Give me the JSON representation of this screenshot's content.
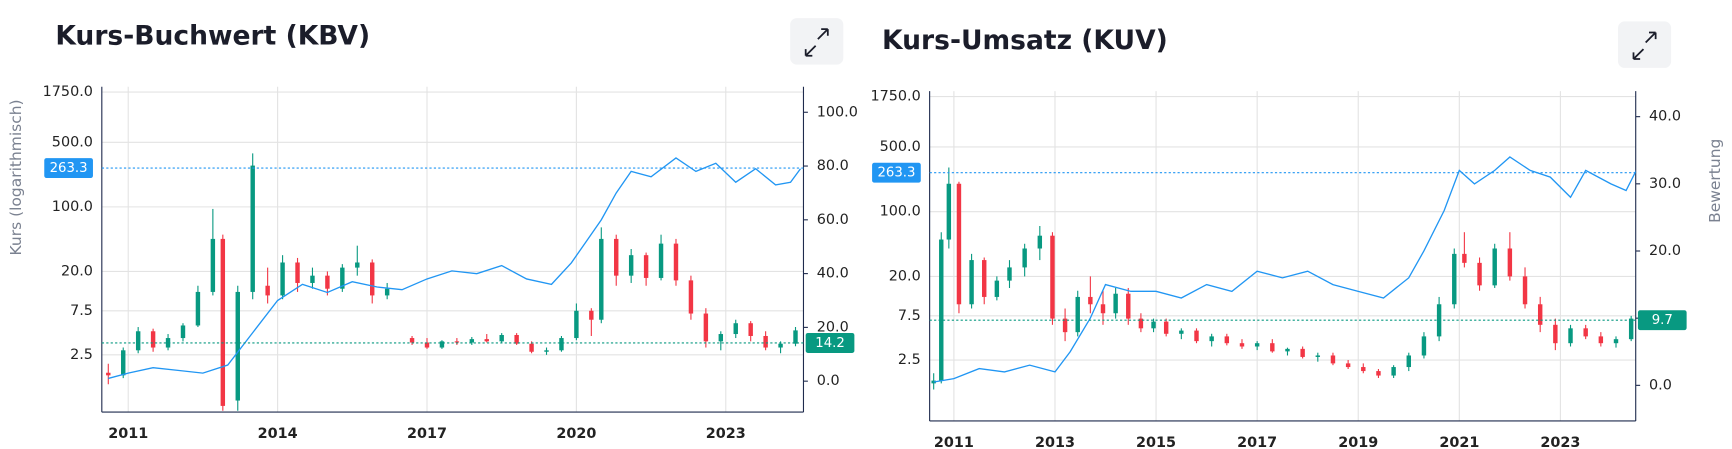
{
  "chart_data": [
    {
      "type": "candlestick",
      "title": "Kurs-Buchwert (KBV)",
      "y_label": "Kurs (logarithmisch)",
      "ylog": true,
      "ylim": [
        0.6,
        2000
      ],
      "yticks": [
        2.5,
        7.5,
        {
          "value": 20,
          "label": "20.0"
        },
        {
          "value": 100,
          "label": "100.0"
        },
        {
          "value": 500,
          "label": "500.0"
        },
        {
          "value": 1750,
          "label": "1750.0"
        }
      ],
      "y2lim": [
        -11.5,
        109.5
      ],
      "y2ticks": [
        {
          "value": 0,
          "label": "0.0"
        },
        {
          "value": 20,
          "label": "20.0"
        },
        {
          "value": 40,
          "label": "40.0"
        },
        {
          "value": 60,
          "label": "60.0"
        },
        {
          "value": 80,
          "label": "80.0"
        },
        {
          "value": 100,
          "label": "100.0"
        }
      ],
      "xlim": [
        2010.47,
        2024.56
      ],
      "xticks": [
        2011,
        2014,
        2017,
        2020,
        2023
      ],
      "grid": true,
      "series": [
        {
          "type": "candlestick",
          "up_color": "#089981",
          "down_color": "#f23645",
          "x": [
            2010.6,
            2010.9,
            2011.2,
            2011.5,
            2011.8,
            2012.1,
            2012.4,
            2012.7,
            2012.9,
            2013.2,
            2013.5,
            2013.8,
            2014.1,
            2014.4,
            2014.7,
            2015.0,
            2015.3,
            2015.6,
            2015.9,
            2016.2,
            2016.7,
            2017.0,
            2017.3,
            2017.6,
            2017.9,
            2018.2,
            2018.5,
            2018.8,
            2019.1,
            2019.4,
            2019.7,
            2020.0,
            2020.3,
            2020.5,
            2020.8,
            2021.1,
            2021.4,
            2021.7,
            2022.0,
            2022.3,
            2022.6,
            2022.9,
            2023.2,
            2023.5,
            2023.8,
            2024.1,
            2024.4
          ],
          "open": [
            1.6,
            1.5,
            2.8,
            4.5,
            3.0,
            3.8,
            5.2,
            12,
            45,
            0.8,
            12,
            14,
            11,
            25,
            15,
            18,
            13,
            22,
            25,
            11,
            3.8,
            3.4,
            3.0,
            3.5,
            3.4,
            3.7,
            3.5,
            4.1,
            3.3,
            2.7,
            2.8,
            3.8,
            7.5,
            6.0,
            45,
            18,
            30,
            17,
            40,
            16,
            7,
            3.5,
            4.2,
            5.5,
            4.0,
            3.0,
            3.3
          ],
          "high": [
            2.0,
            3.0,
            5.0,
            4.8,
            4.2,
            5.5,
            14,
            95,
            50,
            14,
            380,
            22,
            30,
            28,
            22,
            20,
            24,
            38,
            27,
            15,
            4.0,
            3.8,
            3.6,
            3.8,
            3.9,
            4.2,
            4.3,
            4.3,
            3.5,
            3.0,
            4.0,
            9.0,
            8.0,
            60,
            50,
            35,
            32,
            50,
            45,
            18,
            8,
            4.5,
            6.0,
            5.8,
            4.5,
            3.5,
            5.0
          ],
          "low": [
            1.2,
            1.4,
            2.6,
            2.7,
            2.8,
            3.5,
            5.0,
            11,
            0.62,
            0.62,
            10,
            9,
            10,
            12,
            13,
            11,
            12,
            18,
            9,
            10,
            3.2,
            2.9,
            2.9,
            3.2,
            3.2,
            3.4,
            3.4,
            3.2,
            2.6,
            2.5,
            2.7,
            3.6,
            4.0,
            5.5,
            14,
            15,
            14,
            16,
            14,
            6,
            3,
            2.8,
            3.8,
            3.5,
            2.8,
            2.6,
            3.1
          ],
          "close": [
            1.5,
            2.8,
            4.5,
            3.0,
            3.8,
            5.2,
            12,
            45,
            0.7,
            12,
            280,
            11,
            25,
            15,
            18,
            13,
            22,
            25,
            11,
            13,
            3.4,
            3.0,
            3.5,
            3.4,
            3.7,
            3.5,
            4.1,
            3.3,
            2.7,
            2.8,
            3.8,
            7.5,
            6.0,
            45,
            18,
            30,
            17,
            40,
            16,
            7,
            3.5,
            4.2,
            5.5,
            4.0,
            3.0,
            3.3,
            4.6
          ]
        },
        {
          "type": "line",
          "axis": "y2",
          "color": "#2196f3",
          "x": [
            2010.6,
            2011,
            2011.5,
            2012,
            2012.5,
            2013,
            2013.5,
            2014,
            2014.5,
            2015,
            2015.5,
            2016,
            2016.5,
            2017,
            2017.5,
            2018,
            2018.5,
            2019,
            2019.5,
            2019.9,
            2020.2,
            2020.5,
            2020.8,
            2021.1,
            2021.5,
            2022,
            2022.4,
            2022.8,
            2023.2,
            2023.6,
            2024,
            2024.3,
            2024.5
          ],
          "values": [
            1,
            3,
            5,
            4,
            3,
            6,
            18,
            30,
            36,
            33,
            37,
            35,
            34,
            38,
            41,
            40,
            43,
            38,
            36,
            44,
            52,
            60,
            70,
            78,
            76,
            83,
            78,
            81,
            74,
            79,
            73,
            74,
            79
          ]
        }
      ],
      "markers": [
        {
          "value": 263.3,
          "axis": "y",
          "color": "#2196f3"
        },
        {
          "value": 14.2,
          "axis": "y2",
          "color": "#089981"
        }
      ]
    },
    {
      "type": "candlestick",
      "title": "Kurs-Umsatz (KUV)",
      "y2_label": "Bewertung",
      "ylog": true,
      "ylim": [
        0.55,
        2000
      ],
      "yticks": [
        2.5,
        7.5,
        {
          "value": 20,
          "label": "20.0"
        },
        {
          "value": 100,
          "label": "100.0"
        },
        {
          "value": 500,
          "label": "500.0"
        },
        {
          "value": 1750,
          "label": "1750.0"
        }
      ],
      "y2lim": [
        -5.3,
        43.8
      ],
      "y2ticks": [
        {
          "value": 0,
          "label": "0.0"
        },
        {
          "value": 10,
          "label": "10.0"
        },
        {
          "value": 20,
          "label": "20.0"
        },
        {
          "value": 30,
          "label": "30.0"
        },
        {
          "value": 40,
          "label": "40.0"
        }
      ],
      "xlim": [
        2010.52,
        2024.49
      ],
      "xticks": [
        2011,
        2013,
        2015,
        2017,
        2019,
        2021,
        2023
      ],
      "grid": true,
      "series": [
        {
          "type": "candlestick",
          "up_color": "#089981",
          "down_color": "#f23645",
          "x": [
            2010.6,
            2010.75,
            2010.9,
            2011.1,
            2011.35,
            2011.6,
            2011.85,
            2012.1,
            2012.4,
            2012.7,
            2012.95,
            2013.2,
            2013.45,
            2013.7,
            2013.95,
            2014.2,
            2014.45,
            2014.7,
            2014.95,
            2015.2,
            2015.5,
            2015.8,
            2016.1,
            2016.4,
            2016.7,
            2017.0,
            2017.3,
            2017.6,
            2017.9,
            2018.2,
            2018.5,
            2018.8,
            2019.1,
            2019.4,
            2019.7,
            2020.0,
            2020.3,
            2020.6,
            2020.9,
            2021.1,
            2021.4,
            2021.7,
            2022.0,
            2022.3,
            2022.6,
            2022.9,
            2023.2,
            2023.5,
            2023.8,
            2024.1,
            2024.4
          ],
          "open": [
            1.4,
            1.5,
            50,
            200,
            10,
            30,
            12,
            18,
            25,
            40,
            55,
            7,
            5,
            12,
            10,
            8,
            13,
            7,
            5.5,
            6.5,
            4.8,
            5.2,
            4.0,
            4.5,
            3.8,
            3.5,
            3.8,
            3.1,
            3.3,
            2.7,
            2.8,
            2.3,
            2.1,
            1.9,
            1.7,
            2.1,
            2.8,
            4.5,
            10,
            35,
            28,
            16,
            40,
            20,
            10,
            6,
            3.8,
            5.5,
            4.5,
            3.8,
            4.2
          ],
          "high": [
            1.8,
            60,
            300,
            210,
            35,
            32,
            20,
            30,
            45,
            70,
            60,
            9,
            14,
            20,
            14,
            15,
            15,
            8,
            7,
            7,
            5.5,
            5.5,
            4.8,
            4.8,
            4.2,
            4.0,
            4.2,
            3.4,
            3.5,
            3.0,
            3.0,
            2.5,
            2.3,
            2.0,
            2.2,
            3.0,
            5.0,
            12,
            40,
            60,
            32,
            45,
            60,
            25,
            12,
            7,
            6,
            6,
            5,
            4.5,
            7.5
          ],
          "low": [
            1.2,
            1.4,
            40,
            8,
            9,
            10,
            11,
            15,
            20,
            30,
            6,
            4,
            4.5,
            8,
            6,
            7,
            6,
            5,
            5,
            4.5,
            4.2,
            3.8,
            3.5,
            3.6,
            3.3,
            3.2,
            3.0,
            2.8,
            2.6,
            2.4,
            2.2,
            2.0,
            1.8,
            1.6,
            1.6,
            1.9,
            2.6,
            4.0,
            9,
            25,
            14,
            15,
            18,
            9,
            5,
            3.2,
            3.5,
            4.2,
            3.5,
            3.4,
            4.0
          ],
          "close": [
            1.5,
            50,
            200,
            10,
            30,
            12,
            18,
            25,
            40,
            55,
            7,
            5,
            12,
            10,
            8,
            13,
            7,
            5.5,
            6.5,
            4.8,
            5.2,
            4.0,
            4.5,
            3.8,
            3.5,
            3.8,
            3.1,
            3.3,
            2.7,
            2.8,
            2.3,
            2.1,
            1.9,
            1.7,
            2.1,
            2.8,
            4.5,
            10,
            35,
            28,
            16,
            40,
            20,
            10,
            6,
            3.8,
            5.5,
            4.5,
            3.8,
            4.2,
            7.0
          ]
        },
        {
          "type": "line",
          "axis": "y2",
          "color": "#2196f3",
          "x": [
            2010.6,
            2011,
            2011.5,
            2012,
            2012.5,
            2013,
            2013.3,
            2013.7,
            2014,
            2014.5,
            2015,
            2015.5,
            2016,
            2016.5,
            2017,
            2017.5,
            2018,
            2018.5,
            2019,
            2019.5,
            2020,
            2020.3,
            2020.7,
            2021,
            2021.3,
            2021.7,
            2022,
            2022.4,
            2022.8,
            2023.2,
            2023.5,
            2024,
            2024.3,
            2024.5
          ],
          "values": [
            0.5,
            1,
            2.5,
            2,
            3,
            2,
            5,
            10,
            15,
            14,
            14,
            13,
            15,
            14,
            17,
            16,
            17,
            15,
            14,
            13,
            16,
            20,
            26,
            32,
            30,
            32,
            34,
            32,
            31,
            28,
            32,
            30,
            29,
            32
          ]
        }
      ],
      "markers": [
        {
          "value": 263.3,
          "axis": "y",
          "color": "#2196f3"
        },
        {
          "value": 9.7,
          "axis": "y2",
          "color": "#089981"
        }
      ]
    }
  ]
}
